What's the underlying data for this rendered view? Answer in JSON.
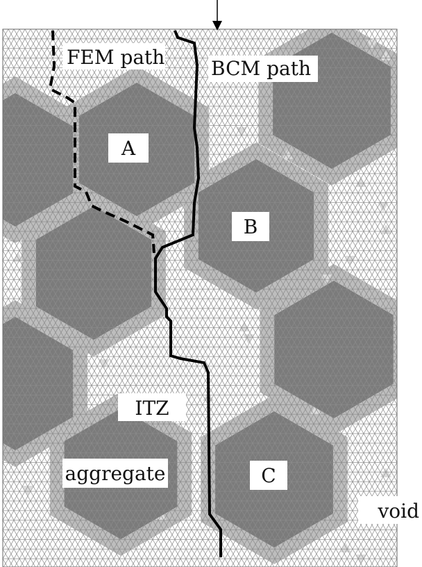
{
  "labels": {
    "fem_path": "FEM path",
    "bcm_path": "BCM path",
    "aggregate_a": "A",
    "aggregate_b": "B",
    "aggregate_c": "C",
    "itz": "ITZ",
    "aggregate": "aggregate",
    "void": "void"
  },
  "colors": {
    "background": "#ffffff",
    "mesh_line": "#8a8a8a",
    "itz_fill": "#bdbdbd",
    "aggregate_fill": "#7b7b7b",
    "void_fill": "#dddddd",
    "path_stroke": "#000000"
  }
}
